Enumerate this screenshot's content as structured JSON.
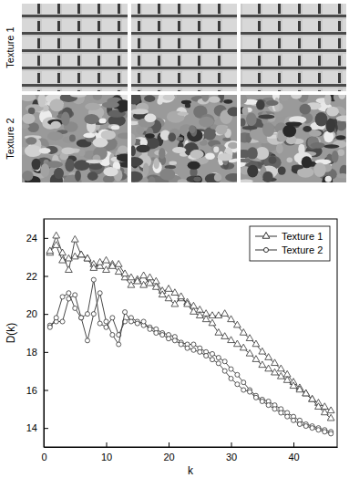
{
  "chart_data": {
    "type": "line",
    "x_label": "k",
    "y_label": "D(k)",
    "annotations": [
      "Texture 1",
      "Texture 2"
    ],
    "x": [
      1,
      2,
      3,
      4,
      5,
      6,
      7,
      8,
      9,
      10,
      11,
      12,
      13,
      14,
      15,
      16,
      17,
      18,
      19,
      20,
      21,
      22,
      23,
      24,
      25,
      26,
      27,
      28,
      29,
      30,
      31,
      32,
      33,
      34,
      35,
      36,
      37,
      38,
      39,
      40,
      41,
      42,
      43,
      44,
      45,
      46
    ],
    "xlim": [
      0,
      47
    ],
    "xticks": [
      0,
      10,
      20,
      30,
      40
    ],
    "ylim": [
      13,
      25
    ],
    "yticks": [
      14,
      16,
      18,
      20,
      22,
      24
    ],
    "legend": "upper right",
    "series": [
      {
        "name": "Texture 1",
        "color": "#333333",
        "marker": "triangle",
        "line_style": "solid",
        "values": [
          23.2,
          24.1,
          23.2,
          22.3,
          23.9,
          23.1,
          22.9,
          22.6,
          22.5,
          22.3,
          22.6,
          22.2,
          21.9,
          21.5,
          21.8,
          21.5,
          21.9,
          21.7,
          21.2,
          21.3,
          21.1,
          20.8,
          20.6,
          20.4,
          20.2,
          20.0,
          19.9,
          19.9,
          20.0,
          19.7,
          19.4,
          19.0,
          18.7,
          18.4,
          18.0,
          17.7,
          17.4,
          17.1,
          16.8,
          16.4,
          16.1,
          15.8,
          15.5,
          15.3,
          15.1,
          14.9
        ]
      },
      {
        "name": "Texture 1",
        "color": "#333333",
        "marker": "triangle",
        "line_style": "solid",
        "values": [
          23.3,
          23.6,
          22.8,
          22.9,
          23.0,
          23.1,
          22.9,
          22.4,
          22.7,
          22.8,
          22.5,
          22.6,
          22.1,
          21.9,
          21.7,
          22.0,
          21.6,
          21.4,
          21.0,
          20.8,
          20.5,
          20.9,
          20.5,
          20.1,
          19.9,
          19.7,
          19.5,
          19.0,
          18.8,
          18.6,
          18.4,
          18.2,
          17.9,
          17.6,
          17.3,
          17.1,
          16.9,
          16.7,
          16.5,
          16.2,
          16.0,
          15.8,
          15.5,
          15.1,
          14.8,
          14.5
        ]
      },
      {
        "name": "Texture 2",
        "color": "#333333",
        "marker": "circle",
        "line_style": "solid",
        "values": [
          19.4,
          19.6,
          19.6,
          20.8,
          21.0,
          19.8,
          20.0,
          21.8,
          19.5,
          19.3,
          19.8,
          18.9,
          19.6,
          19.8,
          19.6,
          19.4,
          19.3,
          19.2,
          19.0,
          18.9,
          18.8,
          18.5,
          18.4,
          18.4,
          18.2,
          18.0,
          17.9,
          17.7,
          17.5,
          17.1,
          16.8,
          16.4,
          16.0,
          15.7,
          15.5,
          15.4,
          15.2,
          15.0,
          14.8,
          14.6,
          14.4,
          14.2,
          14.1,
          14.0,
          13.9,
          13.8
        ]
      },
      {
        "name": "Texture 2",
        "color": "#333333",
        "marker": "circle",
        "line_style": "solid",
        "values": [
          19.3,
          19.8,
          20.9,
          21.1,
          20.3,
          19.8,
          18.6,
          20.0,
          21.1,
          19.6,
          18.9,
          18.4,
          20.1,
          19.6,
          19.5,
          19.6,
          19.2,
          19.0,
          18.9,
          18.7,
          18.6,
          18.4,
          18.2,
          18.1,
          18.0,
          17.8,
          17.6,
          17.4,
          17.0,
          16.6,
          16.3,
          16.0,
          15.9,
          15.6,
          15.4,
          15.2,
          15.0,
          14.8,
          14.6,
          14.4,
          14.2,
          14.1,
          14.0,
          13.9,
          13.8,
          13.7
        ]
      }
    ]
  }
}
